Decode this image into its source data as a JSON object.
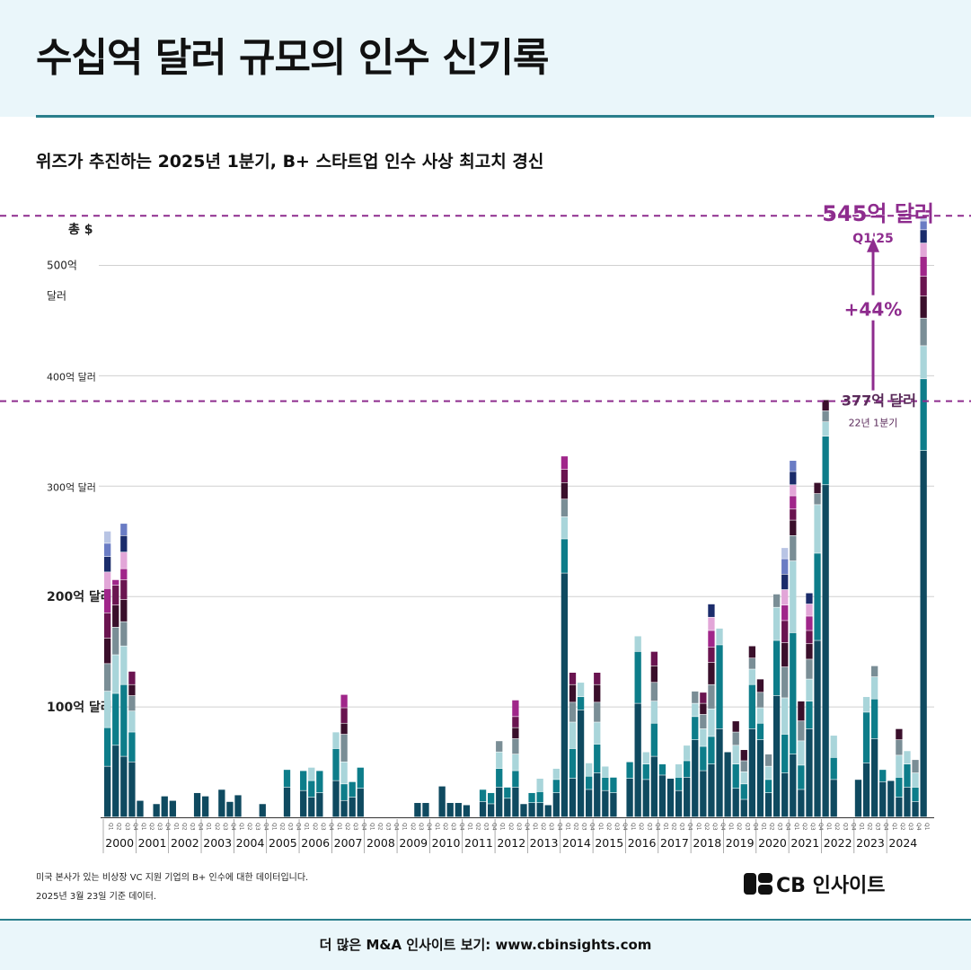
{
  "title": "수십억 달러 규모의 인수 신기록",
  "subtitle": "위즈가 추진하는 2025년 1분기, B+ 스타트업 인수 사상 최고치 경신",
  "footnote1": "미국 본사가 있는 비상장 VC 지원 기업의 B+ 인수에 대한 데이터입니다.",
  "footnote2": "2025년 3월 23일 기준 데이터.",
  "logo_text": "CB 인사이트",
  "footer_text": "더 많은 M&A 인사이트 보기: www.cbinsights.com",
  "colors": {
    "segments": [
      "#0f4a60",
      "#0d7d8a",
      "#a9d5da",
      "#7a8e96",
      "#3a0f2b",
      "#6a1450",
      "#a0268a",
      "#e2a6d8",
      "#1b2c6b",
      "#6a7cc4",
      "#b8c4e4"
    ],
    "accent": "#8e2c8e",
    "grid": "#d0d0d0"
  },
  "chart_data": {
    "type": "bar",
    "stacked": true,
    "unit": "억 달러",
    "ylim": [
      0,
      550
    ],
    "y_axis_title": "총 $",
    "y_tick_labels": [
      {
        "value": 100,
        "label": "100억 달러"
      },
      {
        "value": 200,
        "label": "200억 달러"
      },
      {
        "value": 300,
        "label": "300억 달러"
      },
      {
        "value": 400,
        "label": "400억 달러"
      },
      {
        "value": 500,
        "label": "500억 달러"
      }
    ],
    "quarter_labels": [
      "Q1",
      "Q2",
      "Q3",
      "Q4"
    ],
    "years": [
      "2000",
      "2001",
      "2002",
      "2003",
      "2004",
      "2005",
      "2006",
      "2007",
      "2008",
      "2009",
      "2010",
      "2011",
      "2012",
      "2013",
      "2014",
      "2015",
      "2016",
      "2017",
      "2018",
      "2019",
      "2020",
      "2021",
      "2022",
      "2023",
      "2024"
    ],
    "quarters": [
      {
        "year": "2000",
        "q": "Q1",
        "segments": [
          46,
          35,
          33,
          25,
          23,
          23,
          22,
          15,
          14,
          12,
          11
        ]
      },
      {
        "year": "2000",
        "q": "Q2",
        "segments": [
          65,
          47,
          35,
          25,
          20,
          18,
          5
        ]
      },
      {
        "year": "2000",
        "q": "Q3",
        "segments": [
          55,
          65,
          35,
          22,
          20,
          18,
          10,
          15,
          15,
          11
        ]
      },
      {
        "year": "2000",
        "q": "Q4",
        "segments": [
          50,
          27,
          19,
          14,
          10,
          12
        ]
      },
      {
        "year": "2001",
        "q": "Q1",
        "segments": [
          15
        ]
      },
      {
        "year": "2001",
        "q": "Q2",
        "segments": []
      },
      {
        "year": "2001",
        "q": "Q3",
        "segments": [
          12
        ]
      },
      {
        "year": "2001",
        "q": "Q4",
        "segments": [
          19
        ]
      },
      {
        "year": "2002",
        "q": "Q1",
        "segments": [
          15
        ]
      },
      {
        "year": "2002",
        "q": "Q2",
        "segments": []
      },
      {
        "year": "2002",
        "q": "Q3",
        "segments": []
      },
      {
        "year": "2002",
        "q": "Q4",
        "segments": [
          22
        ]
      },
      {
        "year": "2003",
        "q": "Q1",
        "segments": [
          19
        ]
      },
      {
        "year": "2003",
        "q": "Q2",
        "segments": []
      },
      {
        "year": "2003",
        "q": "Q3",
        "segments": [
          25
        ]
      },
      {
        "year": "2003",
        "q": "Q4",
        "segments": [
          14
        ]
      },
      {
        "year": "2004",
        "q": "Q1",
        "segments": [
          20
        ]
      },
      {
        "year": "2004",
        "q": "Q2",
        "segments": []
      },
      {
        "year": "2004",
        "q": "Q3",
        "segments": []
      },
      {
        "year": "2004",
        "q": "Q4",
        "segments": [
          12
        ]
      },
      {
        "year": "2005",
        "q": "Q1",
        "segments": []
      },
      {
        "year": "2005",
        "q": "Q2",
        "segments": []
      },
      {
        "year": "2005",
        "q": "Q3",
        "segments": [
          27,
          16
        ]
      },
      {
        "year": "2005",
        "q": "Q4",
        "segments": []
      },
      {
        "year": "2006",
        "q": "Q1",
        "segments": [
          24,
          18
        ]
      },
      {
        "year": "2006",
        "q": "Q2",
        "segments": [
          18,
          15,
          12
        ]
      },
      {
        "year": "2006",
        "q": "Q3",
        "segments": [
          22,
          20
        ]
      },
      {
        "year": "2006",
        "q": "Q4",
        "segments": []
      },
      {
        "year": "2007",
        "q": "Q1",
        "segments": [
          33,
          29,
          15
        ]
      },
      {
        "year": "2007",
        "q": "Q2",
        "segments": [
          15,
          15,
          20,
          25,
          10,
          14,
          12
        ]
      },
      {
        "year": "2007",
        "q": "Q3",
        "segments": [
          18,
          14
        ]
      },
      {
        "year": "2007",
        "q": "Q4",
        "segments": [
          26,
          19
        ]
      },
      {
        "year": "2008",
        "q": "Q1",
        "segments": []
      },
      {
        "year": "2008",
        "q": "Q2",
        "segments": []
      },
      {
        "year": "2008",
        "q": "Q3",
        "segments": []
      },
      {
        "year": "2008",
        "q": "Q4",
        "segments": []
      },
      {
        "year": "2009",
        "q": "Q1",
        "segments": []
      },
      {
        "year": "2009",
        "q": "Q2",
        "segments": []
      },
      {
        "year": "2009",
        "q": "Q3",
        "segments": [
          13
        ]
      },
      {
        "year": "2009",
        "q": "Q4",
        "segments": [
          13
        ]
      },
      {
        "year": "2010",
        "q": "Q1",
        "segments": []
      },
      {
        "year": "2010",
        "q": "Q2",
        "segments": [
          28
        ]
      },
      {
        "year": "2010",
        "q": "Q3",
        "segments": [
          13
        ]
      },
      {
        "year": "2010",
        "q": "Q4",
        "segments": [
          13
        ]
      },
      {
        "year": "2011",
        "q": "Q1",
        "segments": [
          11
        ]
      },
      {
        "year": "2011",
        "q": "Q2",
        "segments": []
      },
      {
        "year": "2011",
        "q": "Q3",
        "segments": [
          14,
          11
        ]
      },
      {
        "year": "2011",
        "q": "Q4",
        "segments": [
          12,
          10
        ]
      },
      {
        "year": "2012",
        "q": "Q1",
        "segments": [
          27,
          17,
          15,
          10
        ]
      },
      {
        "year": "2012",
        "q": "Q2",
        "segments": [
          17,
          10
        ]
      },
      {
        "year": "2012",
        "q": "Q3",
        "segments": [
          27,
          15,
          15,
          14,
          10,
          10,
          15
        ]
      },
      {
        "year": "2012",
        "q": "Q4",
        "segments": [
          12
        ]
      },
      {
        "year": "2013",
        "q": "Q1",
        "segments": [
          13,
          9
        ]
      },
      {
        "year": "2013",
        "q": "Q2",
        "segments": [
          13,
          10,
          12
        ]
      },
      {
        "year": "2013",
        "q": "Q3",
        "segments": [
          11
        ]
      },
      {
        "year": "2013",
        "q": "Q4",
        "segments": [
          22,
          12,
          10
        ]
      },
      {
        "year": "2014",
        "q": "Q1",
        "segments": [
          221,
          31,
          20,
          16,
          15,
          12,
          12
        ]
      },
      {
        "year": "2014",
        "q": "Q2",
        "segments": [
          35,
          27,
          24,
          18,
          16,
          11
        ]
      },
      {
        "year": "2014",
        "q": "Q3",
        "segments": [
          97,
          12,
          13
        ]
      },
      {
        "year": "2014",
        "q": "Q4",
        "segments": [
          25,
          12,
          12
        ]
      },
      {
        "year": "2015",
        "q": "Q1",
        "segments": [
          40,
          26,
          20,
          18,
          16,
          11
        ]
      },
      {
        "year": "2015",
        "q": "Q2",
        "segments": [
          24,
          12,
          10
        ]
      },
      {
        "year": "2015",
        "q": "Q3",
        "segments": [
          22,
          14
        ]
      },
      {
        "year": "2015",
        "q": "Q4",
        "segments": []
      },
      {
        "year": "2016",
        "q": "Q1",
        "segments": [
          35,
          15
        ]
      },
      {
        "year": "2016",
        "q": "Q2",
        "segments": [
          103,
          47,
          14
        ]
      },
      {
        "year": "2016",
        "q": "Q3",
        "segments": [
          34,
          14,
          11
        ]
      },
      {
        "year": "2016",
        "q": "Q4",
        "segments": [
          55,
          30,
          20,
          17,
          15,
          13
        ]
      },
      {
        "year": "2017",
        "q": "Q1",
        "segments": [
          38,
          10
        ]
      },
      {
        "year": "2017",
        "q": "Q2",
        "segments": [
          35
        ]
      },
      {
        "year": "2017",
        "q": "Q3",
        "segments": [
          24,
          12,
          12
        ]
      },
      {
        "year": "2017",
        "q": "Q4",
        "segments": [
          36,
          15,
          14
        ]
      },
      {
        "year": "2018",
        "q": "Q1",
        "segments": [
          70,
          21,
          12,
          11
        ]
      },
      {
        "year": "2018",
        "q": "Q2",
        "segments": [
          42,
          22,
          16,
          13,
          10,
          10
        ]
      },
      {
        "year": "2018",
        "q": "Q3",
        "segments": [
          48,
          25,
          25,
          22,
          20,
          14,
          15,
          12,
          12
        ]
      },
      {
        "year": "2018",
        "q": "Q4",
        "segments": [
          80,
          76,
          15
        ]
      },
      {
        "year": "2019",
        "q": "Q1",
        "segments": [
          59
        ]
      },
      {
        "year": "2019",
        "q": "Q2",
        "segments": [
          26,
          22,
          17,
          12,
          10
        ]
      },
      {
        "year": "2019",
        "q": "Q3",
        "segments": [
          16,
          14,
          11,
          10,
          10
        ]
      },
      {
        "year": "2019",
        "q": "Q4",
        "segments": [
          80,
          40,
          14,
          10,
          11
        ]
      },
      {
        "year": "2020",
        "q": "Q1",
        "segments": [
          70,
          15,
          14,
          14,
          12
        ]
      },
      {
        "year": "2020",
        "q": "Q2",
        "segments": [
          22,
          12,
          12,
          11
        ]
      },
      {
        "year": "2020",
        "q": "Q3",
        "segments": [
          110,
          50,
          30,
          12
        ]
      },
      {
        "year": "2020",
        "q": "Q4",
        "segments": [
          40,
          35,
          33,
          28,
          22,
          20,
          14,
          14,
          14,
          14,
          10
        ]
      },
      {
        "year": "2021",
        "q": "Q1",
        "segments": [
          57,
          110,
          65,
          23,
          14,
          10,
          12,
          10,
          12,
          10
        ]
      },
      {
        "year": "2021",
        "q": "Q2",
        "segments": [
          25,
          22,
          22,
          18,
          18
        ]
      },
      {
        "year": "2021",
        "q": "Q3",
        "segments": [
          80,
          25,
          20,
          18,
          14,
          12,
          13,
          11,
          10
        ]
      },
      {
        "year": "2021",
        "q": "Q4",
        "segments": [
          160,
          79,
          44,
          10,
          10
        ]
      },
      {
        "year": "2022",
        "q": "Q1",
        "segments": [
          301,
          44,
          13,
          10,
          10
        ]
      },
      {
        "year": "2022",
        "q": "Q2",
        "segments": [
          34,
          20,
          20
        ]
      },
      {
        "year": "2022",
        "q": "Q3",
        "segments": []
      },
      {
        "year": "2022",
        "q": "Q4",
        "segments": []
      },
      {
        "year": "2023",
        "q": "Q1",
        "segments": [
          34
        ]
      },
      {
        "year": "2023",
        "q": "Q2",
        "segments": [
          49,
          46,
          14
        ]
      },
      {
        "year": "2023",
        "q": "Q3",
        "segments": [
          71,
          36,
          20,
          10
        ]
      },
      {
        "year": "2023",
        "q": "Q4",
        "segments": [
          32,
          11
        ]
      },
      {
        "year": "2024",
        "q": "Q1",
        "segments": [
          33
        ]
      },
      {
        "year": "2024",
        "q": "Q2",
        "segments": [
          18,
          18,
          20,
          14,
          10
        ]
      },
      {
        "year": "2024",
        "q": "Q3",
        "segments": [
          27,
          21,
          12
        ]
      },
      {
        "year": "2024",
        "q": "Q4",
        "segments": [
          14,
          13,
          13,
          12
        ]
      },
      {
        "year": "2025",
        "q": "Q1",
        "segments": [
          332,
          65,
          30,
          25,
          20,
          18,
          18,
          12,
          12,
          8,
          5
        ]
      }
    ],
    "annotations": {
      "high": {
        "value": 545,
        "label": "545억 달러",
        "sublabel": "Q1'25"
      },
      "prev": {
        "value": 377,
        "label": "377억 달러",
        "sublabel": "22년 1분기"
      },
      "change": "+44%"
    }
  }
}
